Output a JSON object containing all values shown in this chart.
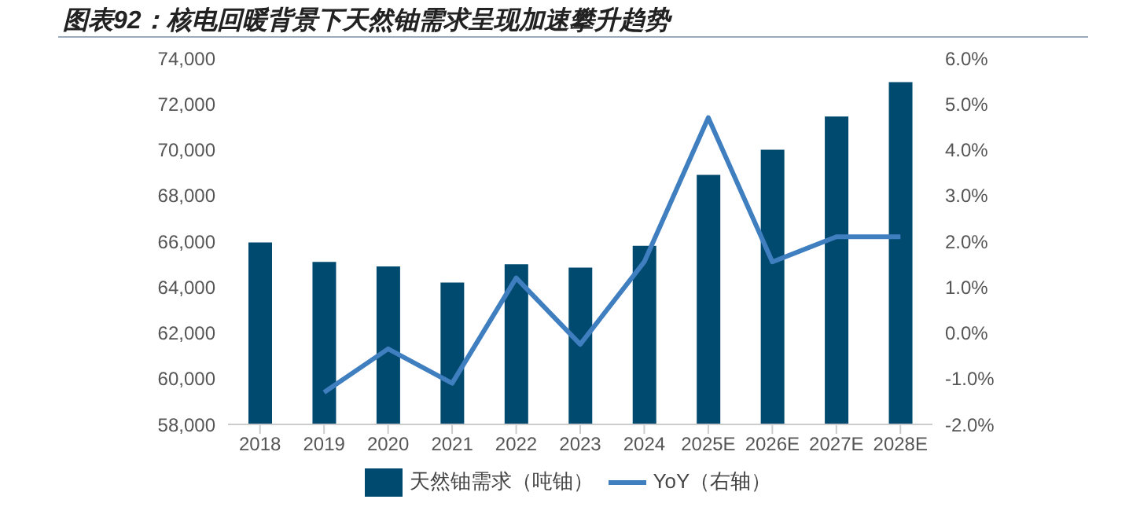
{
  "chart_data": {
    "type": "bar",
    "title": "图表92：核电回暖背景下天然铀需求呈现加速攀升趋势",
    "categories": [
      "2018",
      "2019",
      "2020",
      "2021",
      "2022",
      "2023",
      "2024",
      "2025E",
      "2026E",
      "2027E",
      "2028E"
    ],
    "series": [
      {
        "name": "天然铀需求（吨铀）",
        "color": "#004a70",
        "values": [
          65950,
          65100,
          64900,
          64200,
          65000,
          64850,
          65800,
          68900,
          70000,
          71450,
          72950
        ]
      },
      {
        "name": "YoY（右轴）",
        "type": "line",
        "axis": "y2",
        "color": "#3f7fc0",
        "values": [
          null,
          -1.3,
          -0.35,
          -1.1,
          1.2,
          -0.25,
          1.55,
          4.7,
          1.55,
          2.1,
          2.1
        ]
      }
    ],
    "ylim": [
      58000,
      74000
    ],
    "yticks": [
      {
        "value": 58000,
        "label": "58,000"
      },
      {
        "value": 60000,
        "label": "60,000"
      },
      {
        "value": 62000,
        "label": "62,000"
      },
      {
        "value": 64000,
        "label": "64,000"
      },
      {
        "value": 66000,
        "label": "66,000"
      },
      {
        "value": 68000,
        "label": "68,000"
      },
      {
        "value": 70000,
        "label": "70,000"
      },
      {
        "value": 72000,
        "label": "72,000"
      },
      {
        "value": 74000,
        "label": "74,000"
      }
    ],
    "y2lim": [
      -2,
      6
    ],
    "y2ticks": [
      {
        "value": -2,
        "label": "-2.0%"
      },
      {
        "value": -1,
        "label": "-1.0%"
      },
      {
        "value": 0,
        "label": "0.0%"
      },
      {
        "value": 1,
        "label": "1.0%"
      },
      {
        "value": 2,
        "label": "2.0%"
      },
      {
        "value": 3,
        "label": "3.0%"
      },
      {
        "value": 4,
        "label": "4.0%"
      },
      {
        "value": 5,
        "label": "5.0%"
      },
      {
        "value": 6,
        "label": "6.0%"
      }
    ],
    "grid": false,
    "legend": "bottom",
    "marker": "none"
  }
}
